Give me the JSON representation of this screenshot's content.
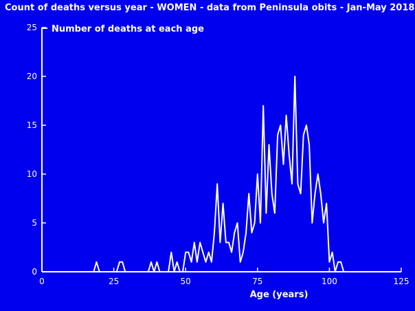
{
  "chart_data": {
    "type": "line",
    "title": "Count of deaths versus year - WOMEN - data from Peninsula obits - Jan-May 2018",
    "xlabel": "Age (years)",
    "ylabel": "",
    "xlim": [
      0,
      125
    ],
    "ylim": [
      0,
      25
    ],
    "xticks": [
      "0",
      "25",
      "50",
      "75",
      "100",
      "125"
    ],
    "yticks": [
      "0",
      "5",
      "10",
      "15",
      "20",
      "25"
    ],
    "grid": false,
    "legend_position": "top-left",
    "colors": {
      "background": "#0000ee",
      "line": "#ffffff",
      "axes": "#ffffff"
    },
    "series": [
      {
        "name": "Number of deaths at each age",
        "x": [
          18,
          19,
          20,
          25,
          26,
          27,
          28,
          29,
          37,
          38,
          39,
          40,
          41,
          44,
          45,
          46,
          47,
          48,
          49,
          50,
          51,
          52,
          53,
          54,
          55,
          56,
          57,
          58,
          59,
          60,
          61,
          62,
          63,
          64,
          65,
          66,
          67,
          68,
          69,
          70,
          71,
          72,
          73,
          74,
          75,
          76,
          77,
          78,
          79,
          80,
          81,
          82,
          83,
          84,
          85,
          86,
          87,
          88,
          89,
          90,
          91,
          92,
          93,
          94,
          95,
          96,
          97,
          98,
          99,
          100,
          101,
          102,
          103,
          104,
          105,
          125
        ],
        "y": [
          0,
          1,
          0,
          0,
          0,
          1,
          1,
          0,
          0,
          1,
          0,
          1,
          0,
          0,
          2,
          0,
          1,
          0,
          0,
          2,
          2,
          1,
          3,
          1,
          3,
          2,
          1,
          2,
          1,
          4,
          9,
          3,
          7,
          3,
          3,
          2,
          4,
          5,
          1,
          2,
          4,
          8,
          4,
          5,
          10,
          5,
          17,
          6,
          13,
          8,
          6,
          14,
          15,
          11,
          16,
          12,
          9,
          20,
          9,
          8,
          14,
          15,
          13,
          5,
          8,
          10,
          8,
          5,
          7,
          1,
          2,
          0,
          1,
          1,
          0,
          0
        ]
      }
    ]
  }
}
